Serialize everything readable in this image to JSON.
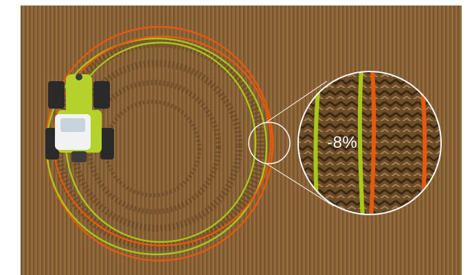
{
  "annotation": {
    "reduction_text": "-8%"
  },
  "colors": {
    "background": "#ffffff",
    "soil": "#8a6437",
    "soil_dark": "#5e4122",
    "track_outer": "#e8590c",
    "track_inner": "#a8c81a",
    "tractor_body": "#b5d12c",
    "tractor_cab": "#f2f2f2"
  },
  "icons": {
    "vehicle": "tractor-icon",
    "zoom": "magnifier-circle"
  }
}
